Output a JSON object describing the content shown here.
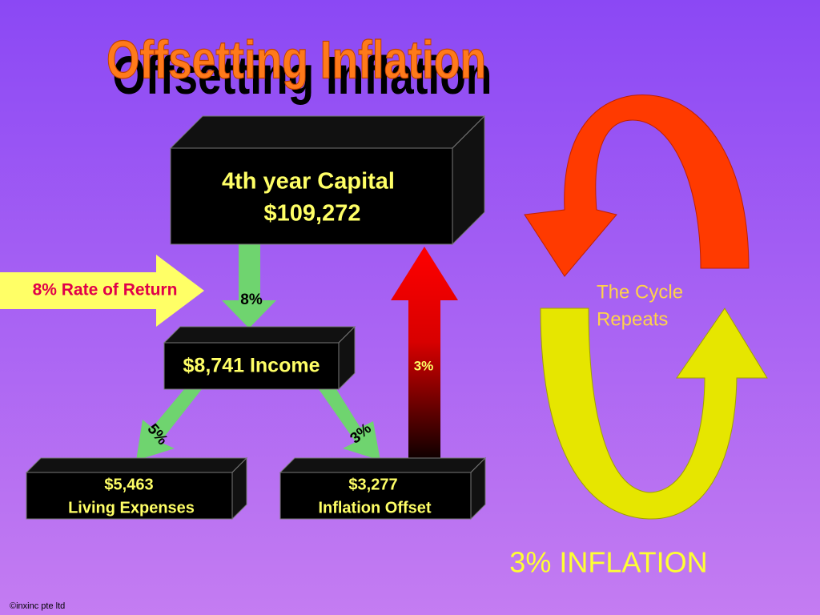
{
  "title": "Offsetting Inflation",
  "nodes": [
    {
      "lines": [
        "4th year Capital",
        "$109,272"
      ]
    },
    {
      "lines": [
        "$8,741 Income"
      ]
    },
    {
      "lines": [
        "$5,463",
        "Living Expenses"
      ]
    },
    {
      "lines": [
        "$3,277",
        "Inflation Offset"
      ]
    }
  ],
  "arrows": [
    {
      "label": "8% Rate of Return"
    },
    {
      "label": "8%"
    },
    {
      "label": "5%"
    },
    {
      "label": "3%"
    },
    {
      "label": "3%"
    }
  ],
  "cycle": {
    "lines": [
      "The Cycle",
      "Repeats"
    ],
    "caption": "3% INFLATION"
  },
  "footer": "©inxinc pte ltd"
}
